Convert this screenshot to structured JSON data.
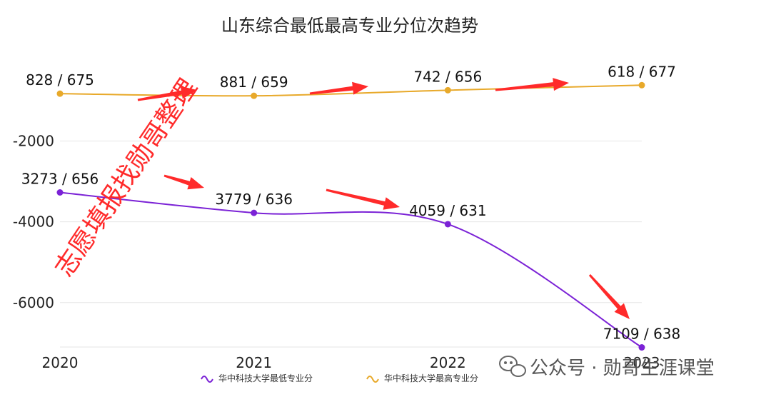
{
  "chart_data": {
    "type": "line",
    "title": "山东综合最低最高专业分位次趋势",
    "categories": [
      "2020",
      "2021",
      "2022",
      "2023"
    ],
    "y_ticks": [
      "-2000",
      "-4000",
      "-6000"
    ],
    "ylim": [
      -7100,
      -100
    ],
    "y_tick_values": [
      -2000,
      -4000,
      -6000
    ],
    "grid": true,
    "legend_position": "bottom-center",
    "series": [
      {
        "name": "华中科技大学最低专业分",
        "color": "#7b22d6",
        "values": [
          -3273,
          -3779,
          -4059,
          -7109
        ],
        "labels": [
          "3273 / 656",
          "3779 / 636",
          "4059 / 631",
          "7109 / 638"
        ]
      },
      {
        "name": "华中科技大学最高专业分",
        "color": "#e8a92a",
        "values": [
          -828,
          -881,
          -742,
          -618
        ],
        "labels": [
          "828 / 675",
          "881 / 659",
          "742 / 656",
          "618 / 677"
        ]
      }
    ]
  },
  "watermark": {
    "diagonal_text": "志愿填报找勋哥整理",
    "account_text": "公众号 · 勋哥生涯课堂",
    "color": "#ff2a2a"
  }
}
